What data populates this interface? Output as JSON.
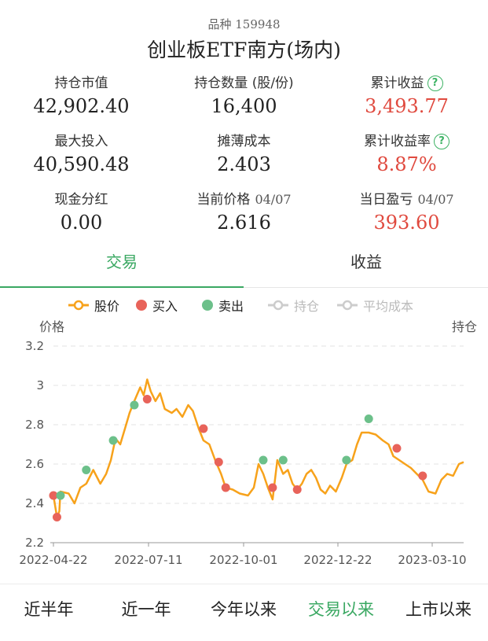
{
  "header": {
    "code_label": "品种",
    "code": "159948",
    "fund_name": "创业板ETF南方(场内)"
  },
  "stats": [
    {
      "label": "持仓市值",
      "value": "42,902.40",
      "red": false,
      "help": false,
      "date": ""
    },
    {
      "label": "持仓数量 (股/份)",
      "value": "16,400",
      "red": false,
      "help": false,
      "date": ""
    },
    {
      "label": "累计收益",
      "value": "3,493.77",
      "red": true,
      "help": true,
      "date": ""
    },
    {
      "label": "最大投入",
      "value": "40,590.48",
      "red": false,
      "help": false,
      "date": ""
    },
    {
      "label": "摊薄成本",
      "value": "2.403",
      "red": false,
      "help": false,
      "date": ""
    },
    {
      "label": "累计收益率",
      "value": "8.87%",
      "red": true,
      "help": true,
      "date": ""
    },
    {
      "label": "现金分红",
      "value": "0.00",
      "red": false,
      "help": false,
      "date": ""
    },
    {
      "label": "当前价格",
      "value": "2.616",
      "red": false,
      "help": false,
      "date": "04/07"
    },
    {
      "label": "当日盈亏",
      "value": "393.60",
      "red": true,
      "help": false,
      "date": "04/07"
    }
  ],
  "help_glyph": "?",
  "tabs": [
    {
      "label": "交易",
      "active": true
    },
    {
      "label": "收益",
      "active": false
    }
  ],
  "legend": [
    {
      "label": "股价",
      "kind": "line",
      "color": "#f7a21b",
      "enabled": true
    },
    {
      "label": "买入",
      "kind": "dot",
      "color": "#e8635a",
      "enabled": true
    },
    {
      "label": "卖出",
      "kind": "dot",
      "color": "#6cc08a",
      "enabled": true
    },
    {
      "label": "持仓",
      "kind": "line",
      "color": "#cccccc",
      "enabled": false
    },
    {
      "label": "平均成本",
      "kind": "line",
      "color": "#cccccc",
      "enabled": false
    }
  ],
  "colors": {
    "accent_green": "#3aa862",
    "price_line": "#f7a21b",
    "buy_dot": "#e8635a",
    "sell_dot": "#6cc08a",
    "gain_red": "#e04a3f"
  },
  "chart_data": {
    "type": "line",
    "ylabel": "价格",
    "y2label": "持仓",
    "ylim": [
      2.2,
      3.2
    ],
    "yticks": [
      "3.2",
      "3",
      "2.8",
      "2.6",
      "2.4",
      "2.2"
    ],
    "ytick_values": [
      3.2,
      3.0,
      2.8,
      2.6,
      2.4,
      2.2
    ],
    "xlim": [
      "2022-04-22",
      "2023-04-07"
    ],
    "xticks": [
      "2022-04-22",
      "2022-07-11",
      "2022-10-01",
      "2022-12-22",
      "2023-03-10"
    ],
    "grid": "horizontal dashed",
    "series": [
      {
        "name": "股价",
        "points": [
          [
            "2022-04-22",
            2.44
          ],
          [
            "2022-04-25",
            2.33
          ],
          [
            "2022-04-27",
            2.36
          ],
          [
            "2022-04-28",
            2.46
          ],
          [
            "2022-05-05",
            2.45
          ],
          [
            "2022-05-10",
            2.4
          ],
          [
            "2022-05-15",
            2.48
          ],
          [
            "2022-05-20",
            2.5
          ],
          [
            "2022-05-26",
            2.57
          ],
          [
            "2022-06-01",
            2.5
          ],
          [
            "2022-06-06",
            2.55
          ],
          [
            "2022-06-10",
            2.62
          ],
          [
            "2022-06-14",
            2.73
          ],
          [
            "2022-06-18",
            2.7
          ],
          [
            "2022-06-22",
            2.78
          ],
          [
            "2022-06-26",
            2.86
          ],
          [
            "2022-06-30",
            2.92
          ],
          [
            "2022-07-05",
            2.99
          ],
          [
            "2022-07-08",
            2.95
          ],
          [
            "2022-07-11",
            3.03
          ],
          [
            "2022-07-14",
            2.97
          ],
          [
            "2022-07-18",
            2.92
          ],
          [
            "2022-07-22",
            2.96
          ],
          [
            "2022-07-26",
            2.88
          ],
          [
            "2022-08-01",
            2.86
          ],
          [
            "2022-08-05",
            2.88
          ],
          [
            "2022-08-10",
            2.84
          ],
          [
            "2022-08-15",
            2.9
          ],
          [
            "2022-08-19",
            2.87
          ],
          [
            "2022-08-24",
            2.78
          ],
          [
            "2022-08-28",
            2.72
          ],
          [
            "2022-09-02",
            2.7
          ],
          [
            "2022-09-07",
            2.62
          ],
          [
            "2022-09-12",
            2.55
          ],
          [
            "2022-09-16",
            2.48
          ],
          [
            "2022-09-22",
            2.47
          ],
          [
            "2022-09-28",
            2.45
          ],
          [
            "2022-10-05",
            2.44
          ],
          [
            "2022-10-10",
            2.48
          ],
          [
            "2022-10-14",
            2.6
          ],
          [
            "2022-10-18",
            2.55
          ],
          [
            "2022-10-22",
            2.48
          ],
          [
            "2022-10-26",
            2.42
          ],
          [
            "2022-10-30",
            2.62
          ],
          [
            "2022-11-04",
            2.55
          ],
          [
            "2022-11-08",
            2.57
          ],
          [
            "2022-11-12",
            2.5
          ],
          [
            "2022-11-16",
            2.47
          ],
          [
            "2022-11-20",
            2.5
          ],
          [
            "2022-11-24",
            2.55
          ],
          [
            "2022-11-28",
            2.57
          ],
          [
            "2022-12-02",
            2.53
          ],
          [
            "2022-12-06",
            2.47
          ],
          [
            "2022-12-10",
            2.45
          ],
          [
            "2022-12-14",
            2.49
          ],
          [
            "2022-12-19",
            2.46
          ],
          [
            "2022-12-24",
            2.53
          ],
          [
            "2022-12-28",
            2.6
          ],
          [
            "2023-01-02",
            2.62
          ],
          [
            "2023-01-06",
            2.7
          ],
          [
            "2023-01-10",
            2.76
          ],
          [
            "2023-01-16",
            2.76
          ],
          [
            "2023-01-22",
            2.75
          ],
          [
            "2023-01-28",
            2.72
          ],
          [
            "2023-02-02",
            2.7
          ],
          [
            "2023-02-06",
            2.64
          ],
          [
            "2023-02-11",
            2.62
          ],
          [
            "2023-02-16",
            2.6
          ],
          [
            "2023-02-21",
            2.58
          ],
          [
            "2023-02-26",
            2.55
          ],
          [
            "2023-03-03",
            2.52
          ],
          [
            "2023-03-08",
            2.46
          ],
          [
            "2023-03-14",
            2.45
          ],
          [
            "2023-03-19",
            2.52
          ],
          [
            "2023-03-24",
            2.55
          ],
          [
            "2023-03-29",
            2.54
          ],
          [
            "2023-04-03",
            2.6
          ],
          [
            "2023-04-07",
            2.61
          ]
        ]
      }
    ],
    "buys": [
      [
        "2022-04-22",
        2.44
      ],
      [
        "2022-04-25",
        2.33
      ],
      [
        "2022-07-11",
        2.93
      ],
      [
        "2022-08-28",
        2.78
      ],
      [
        "2022-09-10",
        2.61
      ],
      [
        "2022-09-16",
        2.48
      ],
      [
        "2022-10-26",
        2.48
      ],
      [
        "2022-11-16",
        2.47
      ],
      [
        "2023-02-09",
        2.68
      ],
      [
        "2023-03-03",
        2.54
      ]
    ],
    "sells": [
      [
        "2022-04-28",
        2.44
      ],
      [
        "2022-05-20",
        2.57
      ],
      [
        "2022-06-12",
        2.72
      ],
      [
        "2022-06-30",
        2.9
      ],
      [
        "2022-10-18",
        2.62
      ],
      [
        "2022-11-04",
        2.62
      ],
      [
        "2022-12-28",
        2.62
      ],
      [
        "2023-01-16",
        2.83
      ]
    ]
  },
  "ranges": [
    {
      "label": "近半年",
      "active": false
    },
    {
      "label": "近一年",
      "active": false
    },
    {
      "label": "今年以来",
      "active": false
    },
    {
      "label": "交易以来",
      "active": true
    },
    {
      "label": "上市以来",
      "active": false
    }
  ]
}
